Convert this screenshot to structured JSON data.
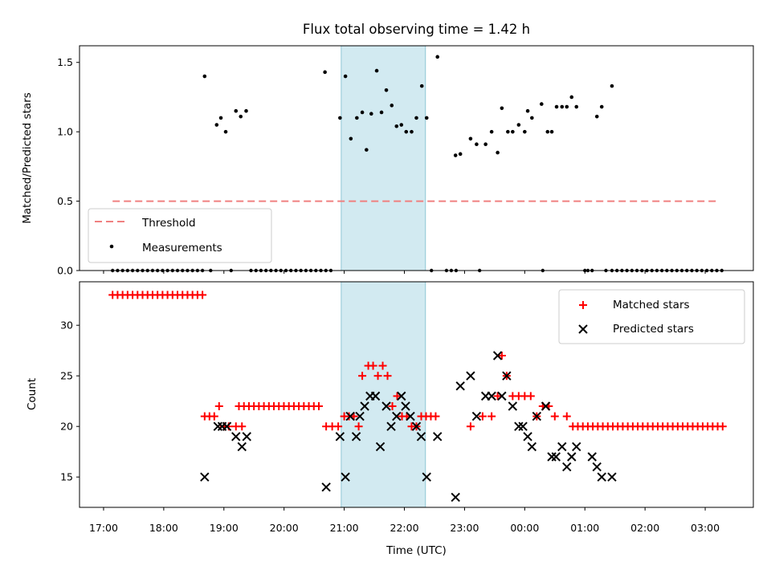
{
  "colors": {
    "shade": "#add8e6",
    "threshold": "#f08080",
    "matched": "#ff0000",
    "predicted": "#000000",
    "measurement": "#000000"
  },
  "chart_data": [
    {
      "type": "scatter",
      "title": "Flux total observing time = 1.42 h",
      "ylabel": "Matched/Predicted stars",
      "xlabel": "",
      "ylim": [
        0,
        1.62
      ],
      "yticks": [
        "0.0",
        "0.5",
        "1.0",
        "1.5"
      ],
      "shaded_interval_hours": [
        20.95,
        22.35
      ],
      "legend_position": "lower-left",
      "series": [
        {
          "name": "Threshold",
          "style": "dashed-line",
          "x": [
            17.15,
            27.2
          ],
          "y": [
            0.5,
            0.5
          ]
        },
        {
          "name": "Measurements",
          "style": "points",
          "x": [
            18.68,
            18.88,
            18.95,
            19.03,
            19.2,
            19.28,
            19.37,
            20.68,
            20.93,
            21.02,
            21.11,
            21.21,
            21.3,
            21.37,
            21.45,
            21.54,
            21.62,
            21.7,
            21.79,
            21.87,
            21.95,
            22.03,
            22.12,
            22.2,
            22.29,
            22.37,
            22.55,
            22.85,
            22.93,
            23.1,
            23.2,
            23.35,
            23.45,
            23.55,
            23.62,
            23.72,
            23.8,
            23.9,
            24.0,
            24.05,
            24.12,
            24.28,
            24.38,
            24.45,
            24.53,
            24.62,
            24.7,
            24.78,
            24.86,
            25.2,
            25.28,
            25.45
          ],
          "y": [
            1.4,
            1.05,
            1.1,
            1.0,
            1.15,
            1.11,
            1.15,
            1.43,
            1.1,
            1.4,
            0.95,
            1.1,
            1.14,
            0.87,
            1.13,
            1.44,
            1.14,
            1.3,
            1.19,
            1.04,
            1.05,
            1.0,
            1.0,
            1.1,
            1.33,
            1.1,
            1.54,
            0.83,
            0.84,
            0.95,
            0.91,
            0.91,
            1.0,
            0.85,
            1.17,
            1.0,
            1.0,
            1.05,
            1.0,
            1.15,
            1.1,
            1.2,
            1.0,
            1.0,
            1.18,
            1.18,
            1.18,
            1.25,
            1.18,
            1.11,
            1.18,
            1.33
          ]
        }
      ]
    },
    {
      "type": "scatter",
      "title": "",
      "ylabel": "Count",
      "xlabel": "Time (UTC)",
      "ylim": [
        12,
        34.3
      ],
      "yticks": [
        "15",
        "20",
        "25",
        "30"
      ],
      "xlim_hours": [
        16.6,
        27.8
      ],
      "xticks": [
        "17:00",
        "18:00",
        "19:00",
        "20:00",
        "21:00",
        "22:00",
        "23:00",
        "00:00",
        "01:00",
        "02:00",
        "03:00"
      ],
      "shaded_interval_hours": [
        20.95,
        22.35
      ],
      "legend_position": "upper-right",
      "series": [
        {
          "name": "Matched stars",
          "marker": "plus",
          "x": [
            18.68,
            18.76,
            18.84,
            18.92,
            19.0,
            19.08,
            19.2,
            19.3,
            20.7,
            20.8,
            20.9,
            21.0,
            21.08,
            21.16,
            21.24,
            21.3,
            21.4,
            21.48,
            21.56,
            21.64,
            21.72,
            21.8,
            21.88,
            21.96,
            22.04,
            22.12,
            22.2,
            22.28,
            22.36,
            22.44,
            22.52,
            23.1,
            23.3,
            23.45,
            23.55,
            23.62,
            23.7,
            23.8,
            23.9,
            24.0,
            24.1,
            24.2,
            24.3,
            24.4,
            24.5,
            24.7
          ],
          "y": [
            21,
            21,
            21,
            22,
            20,
            20,
            20,
            20,
            20,
            20,
            20,
            21,
            21,
            21,
            20,
            25,
            26,
            26,
            25,
            26,
            25,
            22,
            23,
            21,
            21,
            20,
            20,
            21,
            21,
            21,
            21,
            20,
            21,
            21,
            23,
            27,
            25,
            23,
            23,
            23,
            23,
            21,
            22,
            22,
            21,
            21
          ]
        },
        {
          "name": "Predicted stars",
          "marker": "x",
          "x": [
            18.68,
            18.9,
            18.97,
            19.05,
            19.2,
            19.3,
            19.38,
            20.7,
            20.93,
            21.02,
            21.1,
            21.2,
            21.26,
            21.34,
            21.43,
            21.52,
            21.6,
            21.7,
            21.78,
            21.87,
            21.95,
            22.02,
            22.1,
            22.2,
            22.28,
            22.37,
            22.55,
            22.85,
            22.93,
            23.1,
            23.2,
            23.35,
            23.45,
            23.55,
            23.62,
            23.7,
            23.8,
            23.9,
            23.97,
            24.05,
            24.12,
            24.2,
            24.35,
            24.45,
            24.52,
            24.62,
            24.7,
            24.78,
            24.86,
            25.12,
            25.2,
            25.28,
            25.45
          ],
          "y": [
            15,
            20,
            20,
            20,
            19,
            18,
            19,
            14,
            19,
            15,
            21,
            19,
            21,
            22,
            23,
            23,
            18,
            22,
            20,
            21,
            23,
            22,
            21,
            20,
            19,
            15,
            19,
            13,
            24,
            25,
            21,
            23,
            23,
            27,
            23,
            25,
            22,
            20,
            20,
            19,
            18,
            21,
            22,
            17,
            17,
            18,
            16,
            17,
            18,
            17,
            16,
            15,
            15
          ]
        }
      ]
    }
  ]
}
